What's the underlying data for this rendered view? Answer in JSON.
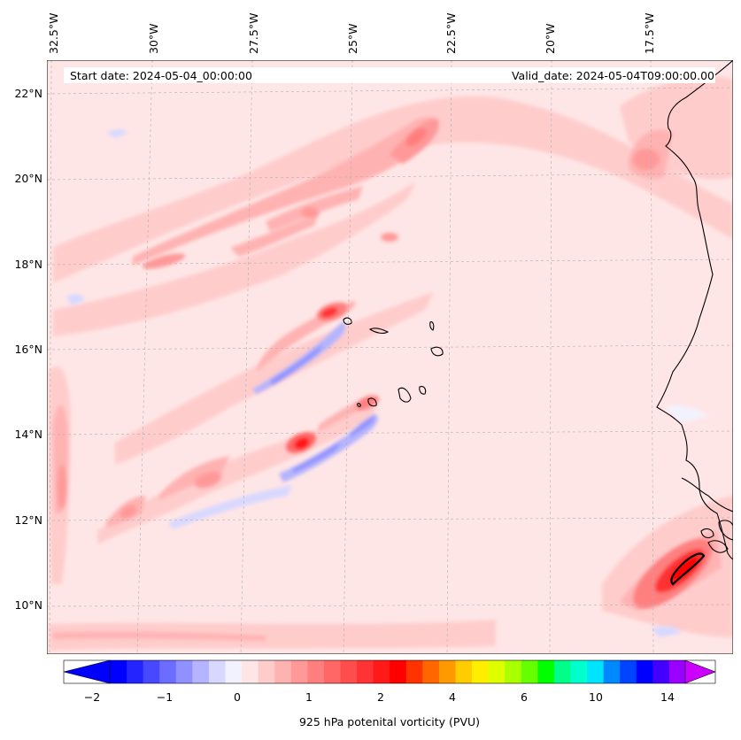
{
  "map": {
    "start_date_text": "Start date: 2024-05-04_00:00:00",
    "valid_date_text": "Valid_date: 2024-05-04T09:00:00.00",
    "longitude_labels": [
      "32.5°W",
      "30°W",
      "27.5°W",
      "25°W",
      "22.5°W",
      "20°W",
      "17.5°W"
    ],
    "latitude_labels": [
      "22°N",
      "20°N",
      "18°N",
      "16°N",
      "14°N",
      "12°N",
      "10°N"
    ],
    "field": "925 hPa potential vorticity",
    "units": "PVU"
  },
  "colorbar": {
    "label": "925 hPa potenital vorticity (PVU)",
    "tick_labels": [
      "−2",
      "−1",
      "0",
      "1",
      "2",
      "4",
      "6",
      "10",
      "14"
    ],
    "colors": [
      "#0000ff",
      "#2424ff",
      "#4848ff",
      "#6c6cff",
      "#9090ff",
      "#b4b4ff",
      "#d8d8ff",
      "#f2f2ff",
      "#ffe6e6",
      "#ffcccc",
      "#ffb2b2",
      "#ff9999",
      "#ff7f7f",
      "#ff6666",
      "#ff4c4c",
      "#ff3333",
      "#ff1919",
      "#ff0000",
      "#ff3300",
      "#ff6600",
      "#ff9900",
      "#ffcc00",
      "#ffee00",
      "#ddff00",
      "#aaff00",
      "#66ff00",
      "#00ff00",
      "#00ff88",
      "#00ffcc",
      "#00e5ff",
      "#0088ff",
      "#0044ff",
      "#0000ff",
      "#4400ff",
      "#9900ff"
    ],
    "extend_low_color": "#0000ff",
    "extend_high_color": "#cc00ff"
  },
  "colors": {
    "background_pv": "#ffe6e6",
    "coastline": "#000000",
    "gridline": "#b0b0b0"
  }
}
